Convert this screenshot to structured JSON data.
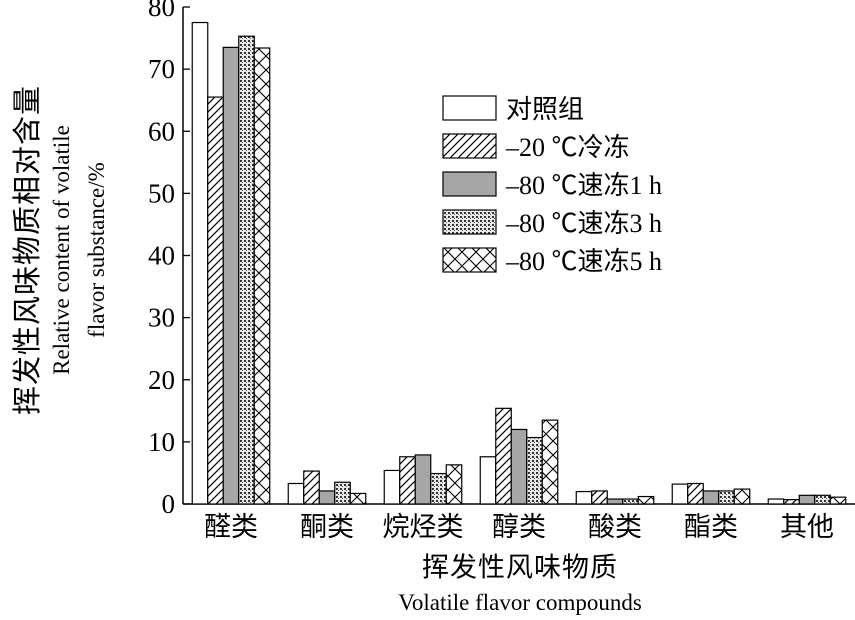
{
  "chart_data": {
    "type": "bar",
    "categories": [
      "醛类",
      "酮类",
      "烷烃类",
      "醇类",
      "酸类",
      "酯类",
      "其他"
    ],
    "series": [
      {
        "name": "对照组",
        "pattern": "white",
        "values": [
          77.5,
          3.3,
          5.4,
          7.6,
          2.0,
          3.2,
          0.8
        ]
      },
      {
        "name": "–20 ℃冷冻",
        "pattern": "diagonal",
        "values": [
          65.5,
          5.3,
          7.6,
          15.4,
          2.1,
          3.3,
          0.7
        ]
      },
      {
        "name": "–80 ℃速冻1 h",
        "pattern": "gray",
        "values": [
          73.5,
          2.1,
          7.9,
          12.0,
          0.8,
          2.1,
          1.4
        ]
      },
      {
        "name": "–80 ℃速冻3 h",
        "pattern": "dots",
        "values": [
          75.3,
          3.5,
          4.9,
          10.7,
          0.8,
          2.1,
          1.4
        ]
      },
      {
        "name": "–80 ℃速冻5 h",
        "pattern": "crosshatch",
        "values": [
          73.4,
          1.7,
          6.3,
          13.5,
          1.2,
          2.4,
          1.1
        ]
      }
    ],
    "title": "",
    "xlabel": "挥发性风味物质",
    "xlabel_en": "Volatile flavor compounds",
    "ylabel": "挥发性风味物质相对含量",
    "ylabel_en_line1": "Relative content of volatile",
    "ylabel_en_line2": "flavor substance/%",
    "ylim": [
      0,
      80
    ],
    "yticks": [
      "0",
      "10",
      "20",
      "30",
      "40",
      "50",
      "60",
      "70",
      "80"
    ],
    "grid": false,
    "legend_position": "upper-right"
  }
}
